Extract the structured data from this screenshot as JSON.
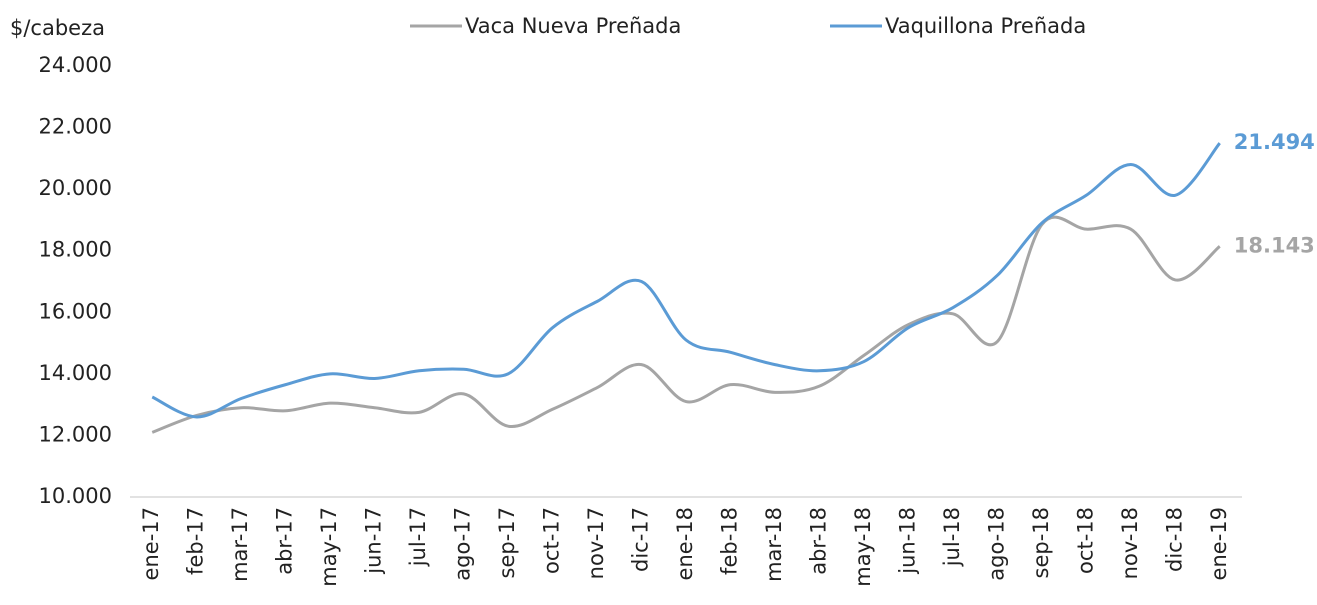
{
  "chart_data": {
    "type": "line",
    "y_axis_label": "$/cabeza",
    "categories": [
      "ene-17",
      "feb-17",
      "mar-17",
      "abr-17",
      "may-17",
      "jun-17",
      "jul-17",
      "ago-17",
      "sep-17",
      "oct-17",
      "nov-17",
      "dic-17",
      "ene-18",
      "feb-18",
      "mar-18",
      "abr-18",
      "may-18",
      "jun-18",
      "jul-18",
      "ago-18",
      "sep-18",
      "oct-18",
      "nov-18",
      "dic-18",
      "ene-19"
    ],
    "series": [
      {
        "name": "Vaca Nueva Preñada",
        "color": "#a5a5a5",
        "values": [
          12100,
          12650,
          12900,
          12800,
          13050,
          12900,
          12750,
          13350,
          12300,
          12850,
          13550,
          14300,
          13100,
          13650,
          13400,
          13600,
          14600,
          15600,
          15950,
          15050,
          18850,
          18700,
          18700,
          17050,
          18143
        ],
        "value_labels": [
          null,
          null,
          null,
          null,
          null,
          null,
          null,
          null,
          null,
          null,
          null,
          null,
          null,
          null,
          null,
          null,
          null,
          null,
          null,
          null,
          null,
          null,
          null,
          null,
          "18.143"
        ]
      },
      {
        "name": "Vaquillona Preñada",
        "color": "#5b9bd5",
        "values": [
          13250,
          12600,
          13200,
          13650,
          14000,
          13850,
          14100,
          14150,
          14000,
          15500,
          16350,
          17000,
          15100,
          14700,
          14300,
          14100,
          14400,
          15500,
          16150,
          17200,
          18900,
          19800,
          20800,
          19800,
          21494
        ],
        "value_labels": [
          null,
          null,
          null,
          null,
          null,
          null,
          null,
          null,
          null,
          null,
          null,
          null,
          null,
          null,
          null,
          null,
          null,
          null,
          null,
          null,
          null,
          null,
          null,
          null,
          "21.494"
        ]
      }
    ],
    "ylim": [
      10000,
      24000
    ],
    "yticks": [
      {
        "value": 10000,
        "label": "10.000"
      },
      {
        "value": 12000,
        "label": "12.000"
      },
      {
        "value": 14000,
        "label": "14.000"
      },
      {
        "value": 16000,
        "label": "16.000"
      },
      {
        "value": 18000,
        "label": "18.000"
      },
      {
        "value": 20000,
        "label": "20.000"
      },
      {
        "value": 22000,
        "label": "22.000"
      },
      {
        "value": 24000,
        "label": "24.000"
      }
    ],
    "grid": false
  }
}
